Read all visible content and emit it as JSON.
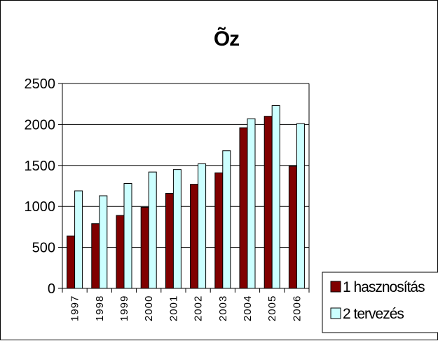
{
  "chart_data": {
    "type": "bar",
    "title": "Õz",
    "xlabel": "",
    "ylabel": "",
    "ylim": [
      0,
      2500
    ],
    "yticks": [
      0,
      500,
      1000,
      1500,
      2000,
      2500
    ],
    "grid": true,
    "legend_position": "bottom-right",
    "categories": [
      "1997",
      "1998",
      "1999",
      "2000",
      "2001",
      "2002",
      "2003",
      "2004",
      "2005",
      "2006"
    ],
    "series": [
      {
        "name": "1 hasznosítás",
        "color": "#800000",
        "values": [
          640,
          790,
          890,
          990,
          1160,
          1270,
          1410,
          1960,
          2100,
          1490
        ]
      },
      {
        "name": "2 tervezés",
        "color": "#ccffff",
        "values": [
          1190,
          1130,
          1280,
          1420,
          1450,
          1520,
          1680,
          2070,
          2230,
          2010
        ]
      }
    ]
  }
}
